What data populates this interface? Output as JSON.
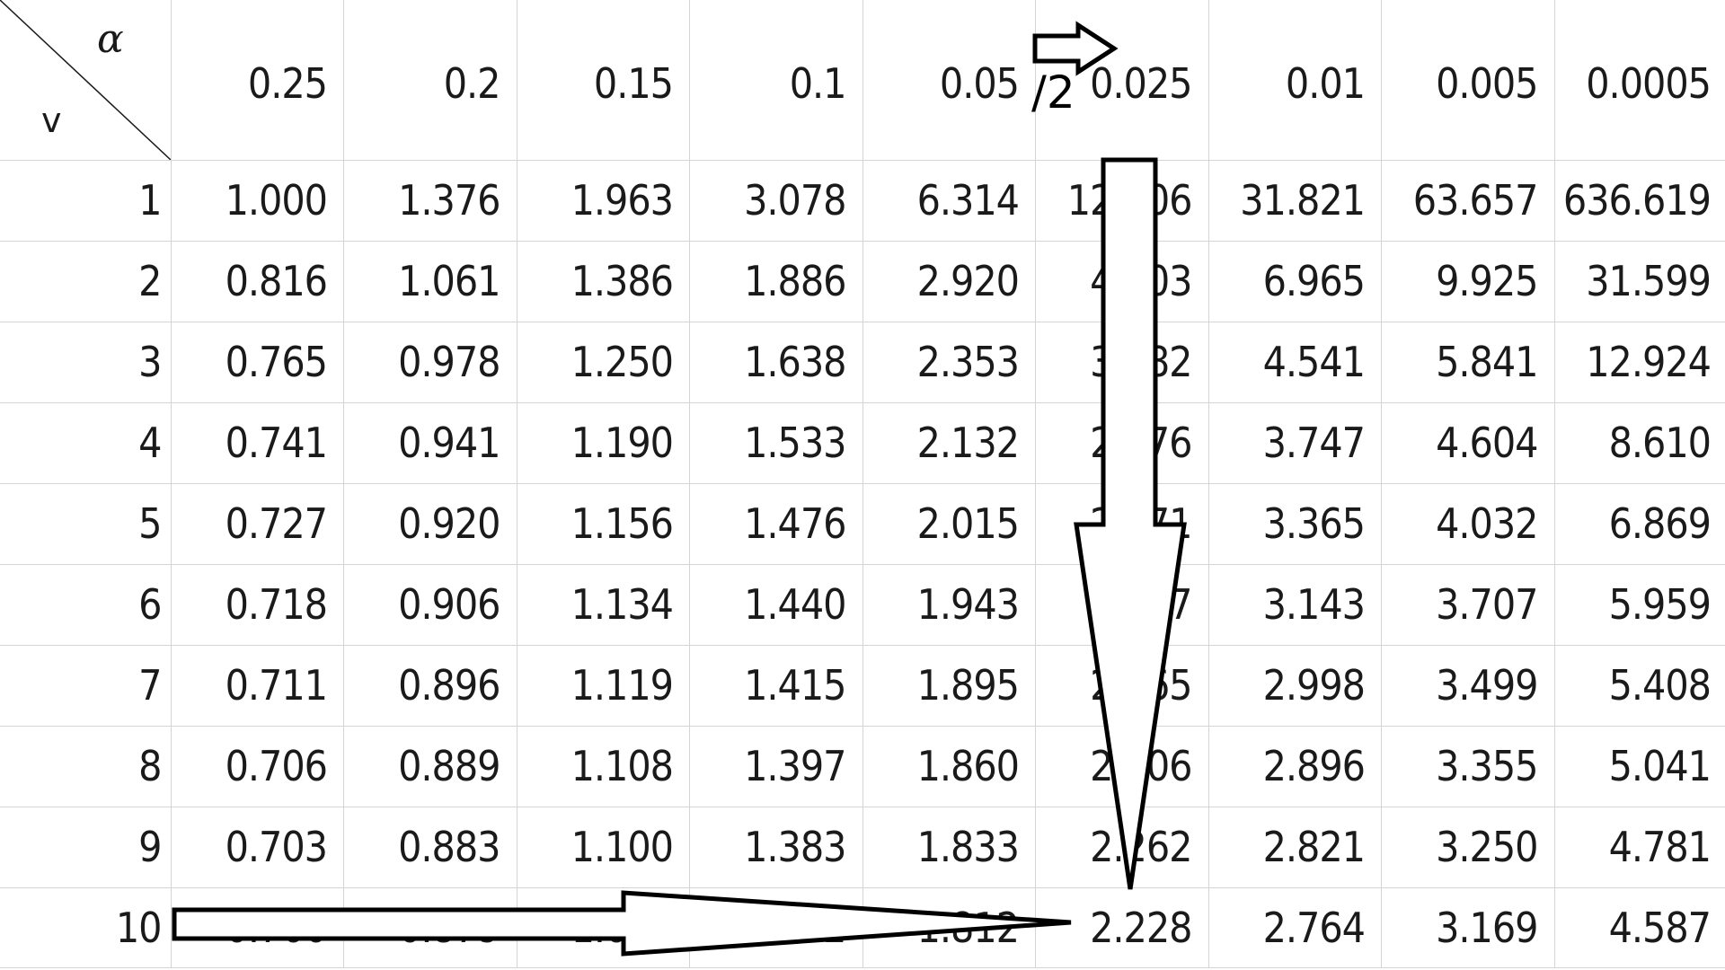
{
  "table": {
    "corner": {
      "alpha_label": "α",
      "df_label": "v"
    },
    "alpha_headers": [
      "0.25",
      "0.2",
      "0.15",
      "0.1",
      "0.05",
      "0.025",
      "0.01",
      "0.005",
      "0.0005"
    ],
    "rows": [
      {
        "df": "1",
        "values": [
          "1.000",
          "1.376",
          "1.963",
          "3.078",
          "6.314",
          "12.706",
          "31.821",
          "63.657",
          "636.619"
        ]
      },
      {
        "df": "2",
        "values": [
          "0.816",
          "1.061",
          "1.386",
          "1.886",
          "2.920",
          "4.303",
          "6.965",
          "9.925",
          "31.599"
        ]
      },
      {
        "df": "3",
        "values": [
          "0.765",
          "0.978",
          "1.250",
          "1.638",
          "2.353",
          "3.182",
          "4.541",
          "5.841",
          "12.924"
        ]
      },
      {
        "df": "4",
        "values": [
          "0.741",
          "0.941",
          "1.190",
          "1.533",
          "2.132",
          "2.776",
          "3.747",
          "4.604",
          "8.610"
        ]
      },
      {
        "df": "5",
        "values": [
          "0.727",
          "0.920",
          "1.156",
          "1.476",
          "2.015",
          "2.571",
          "3.365",
          "4.032",
          "6.869"
        ]
      },
      {
        "df": "6",
        "values": [
          "0.718",
          "0.906",
          "1.134",
          "1.440",
          "1.943",
          "2.447",
          "3.143",
          "3.707",
          "5.959"
        ]
      },
      {
        "df": "7",
        "values": [
          "0.711",
          "0.896",
          "1.119",
          "1.415",
          "1.895",
          "2.365",
          "2.998",
          "3.499",
          "5.408"
        ]
      },
      {
        "df": "8",
        "values": [
          "0.706",
          "0.889",
          "1.108",
          "1.397",
          "1.860",
          "2.306",
          "2.896",
          "3.355",
          "5.041"
        ]
      },
      {
        "df": "9",
        "values": [
          "0.703",
          "0.883",
          "1.100",
          "1.383",
          "1.833",
          "2.262",
          "2.821",
          "3.250",
          "4.781"
        ]
      },
      {
        "df": "10",
        "values": [
          "0.700",
          "0.879",
          "1.093",
          "1.372",
          "1.812",
          "2.228",
          "2.764",
          "3.169",
          "4.587"
        ]
      }
    ]
  },
  "annotations": {
    "half_label": "/2",
    "arrow_outline_color": "#000000",
    "arrow_fill_color": "#ffffff",
    "arrows": [
      "header-right-arrow",
      "column-down-arrow",
      "row-right-arrow"
    ]
  }
}
